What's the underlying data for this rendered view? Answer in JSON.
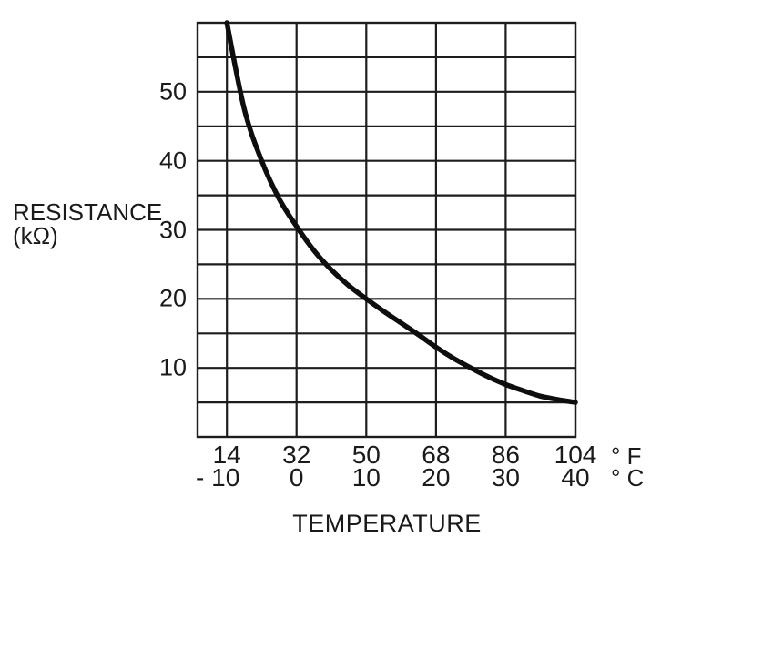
{
  "figure": {
    "background": "#ffffff",
    "text_color": "#1a1a1a",
    "grid_color": "#1d1d1d",
    "curve_color": "#0e0e0e",
    "y_axis_title": {
      "line1": "RESISTANCE",
      "line2": "(kΩ)"
    },
    "x_axis_title": "TEMPERATURE",
    "unit_f": "° F",
    "unit_c": "° C",
    "y_tick_labels": [
      "50",
      "40",
      "30",
      "20",
      "10"
    ],
    "x_tick_labels_f": [
      "14",
      "32",
      "50",
      "68",
      "86",
      "104"
    ],
    "x_tick_labels_c": [
      "- 10",
      "0",
      "10",
      "20",
      "30",
      "40"
    ]
  },
  "chart_data": {
    "type": "line",
    "title": "",
    "xlabel": "TEMPERATURE",
    "ylabel": "RESISTANCE (kΩ)",
    "grid": true,
    "legend": "none",
    "x_axis": {
      "unit_rows": [
        {
          "unit": "°F",
          "ticks": [
            14,
            32,
            50,
            68,
            86,
            104
          ]
        },
        {
          "unit": "°C",
          "ticks": [
            -10,
            0,
            10,
            20,
            30,
            40
          ]
        }
      ],
      "xlim_c": [
        -14.2,
        40
      ]
    },
    "y_axis": {
      "labeled_ticks": [
        50,
        40,
        30,
        20,
        10
      ],
      "gridline_step_kohm": 5,
      "ylim": [
        0,
        60
      ]
    },
    "series": [
      {
        "name": "resistance",
        "x_c": [
          -10,
          -7.5,
          -5,
          -2.5,
          0,
          2.5,
          5,
          7.5,
          10,
          12.5,
          15,
          17.5,
          20,
          22.5,
          25,
          27.5,
          30,
          32.5,
          35,
          37.5,
          40
        ],
        "y_kohm": [
          60,
          47.5,
          40,
          34.5,
          30.5,
          27,
          24.2,
          21.9,
          20,
          18.2,
          16.5,
          14.8,
          13,
          11.4,
          10,
          8.7,
          7.6,
          6.7,
          5.9,
          5.4,
          5
        ]
      }
    ]
  }
}
